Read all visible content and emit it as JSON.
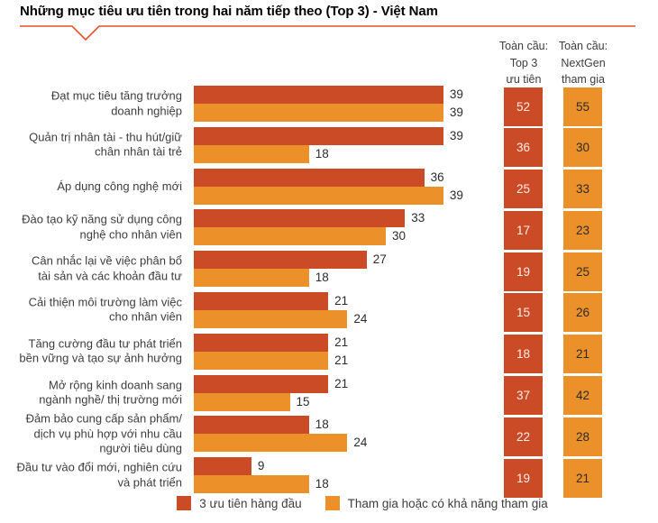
{
  "title": "Những mục tiêu ưu tiên trong hai năm tiếp theo (Top 3) - Việt Nam",
  "colors": {
    "primary": "#CB4B27",
    "secondary": "#EC9129",
    "accent_line": "#E8502A"
  },
  "columns": {
    "global_top3": {
      "header_lines": [
        "Toàn cầu:",
        "Top 3",
        "ưu tiên"
      ]
    },
    "global_nextgen": {
      "header_lines": [
        "Toàn cầu:",
        "NextGen",
        "tham gia"
      ]
    }
  },
  "legend": {
    "items": [
      {
        "label": "3 ưu tiên hàng đầu",
        "color_key": "primary"
      },
      {
        "label": "Tham gia hoặc có khả năng tham gia",
        "color_key": "secondary"
      }
    ]
  },
  "rows": [
    {
      "label_lines": [
        "Đạt mục tiêu tăng trưởng",
        "doanh nghiệp"
      ],
      "top3": 39,
      "engage": 39,
      "global_top3": 52,
      "global_nextgen": 55
    },
    {
      "label_lines": [
        "Quản trị nhân tài - thu hút/giữ",
        "chân nhân tài trẻ"
      ],
      "top3": 39,
      "engage": 18,
      "global_top3": 36,
      "global_nextgen": 30
    },
    {
      "label_lines": [
        "Áp dụng công nghệ mới"
      ],
      "top3": 36,
      "engage": 39,
      "global_top3": 25,
      "global_nextgen": 33
    },
    {
      "label_lines": [
        "Đào tạo kỹ năng sử dụng công",
        "nghệ cho nhân viên"
      ],
      "top3": 33,
      "engage": 30,
      "global_top3": 17,
      "global_nextgen": 23
    },
    {
      "label_lines": [
        "Cân nhắc lại về việc phân bổ",
        "tài sản và các khoản đầu tư"
      ],
      "top3": 27,
      "engage": 18,
      "global_top3": 19,
      "global_nextgen": 25
    },
    {
      "label_lines": [
        "Cải thiện môi trường làm việc",
        "cho nhân viên"
      ],
      "top3": 21,
      "engage": 24,
      "global_top3": 15,
      "global_nextgen": 26
    },
    {
      "label_lines": [
        "Tăng cường đầu tư phát triển",
        "bền vững và tạo sự ảnh hưởng"
      ],
      "top3": 21,
      "engage": 21,
      "global_top3": 18,
      "global_nextgen": 21
    },
    {
      "label_lines": [
        "Mở rộng kinh doanh sang",
        "ngành nghề/ thị trường mới"
      ],
      "top3": 21,
      "engage": 15,
      "global_top3": 37,
      "global_nextgen": 42
    },
    {
      "label_lines": [
        "Đảm bảo cung cấp sản phẩm/",
        "dịch vụ phù hợp với nhu cầu",
        "người tiêu dùng"
      ],
      "top3": 18,
      "engage": 24,
      "global_top3": 22,
      "global_nextgen": 28
    },
    {
      "label_lines": [
        "Đầu tư vào đổi mới, nghiên cứu",
        "và phát triển"
      ],
      "top3": 9,
      "engage": 18,
      "global_top3": 19,
      "global_nextgen": 21
    }
  ],
  "chart_data": {
    "type": "bar",
    "orientation": "horizontal",
    "title": "Những mục tiêu ưu tiên trong hai năm tiếp theo (Top 3) - Việt Nam",
    "categories": [
      "Đạt mục tiêu tăng trưởng doanh nghiệp",
      "Quản trị nhân tài - thu hút/giữ chân nhân tài trẻ",
      "Áp dụng công nghệ mới",
      "Đào tạo kỹ năng sử dụng công nghệ cho nhân viên",
      "Cân nhắc lại về việc phân bổ tài sản và các khoản đầu tư",
      "Cải thiện môi trường làm việc cho nhân viên",
      "Tăng cường đầu tư phát triển bền vững và tạo sự ảnh hưởng",
      "Mở rộng kinh doanh sang ngành nghề/ thị trường mới",
      "Đảm bảo cung cấp sản phẩm/ dịch vụ phù hợp với nhu cầu người tiêu dùng",
      "Đầu tư vào đổi mới, nghiên cứu và phát triển"
    ],
    "series": [
      {
        "name": "3 ưu tiên hàng đầu",
        "values": [
          39,
          39,
          36,
          33,
          27,
          21,
          21,
          21,
          18,
          9
        ]
      },
      {
        "name": "Tham gia hoặc có khả năng tham gia",
        "values": [
          39,
          18,
          39,
          30,
          18,
          24,
          21,
          15,
          24,
          18
        ]
      },
      {
        "name": "Toàn cầu: Top 3 ưu tiên",
        "values": [
          52,
          36,
          25,
          17,
          19,
          15,
          18,
          37,
          22,
          19
        ]
      },
      {
        "name": "Toàn cầu: NextGen tham gia",
        "values": [
          55,
          30,
          33,
          23,
          25,
          26,
          21,
          42,
          28,
          21
        ]
      }
    ],
    "xlim": [
      0,
      42
    ],
    "grid": false,
    "legend_position": "bottom",
    "value_labels": true
  }
}
